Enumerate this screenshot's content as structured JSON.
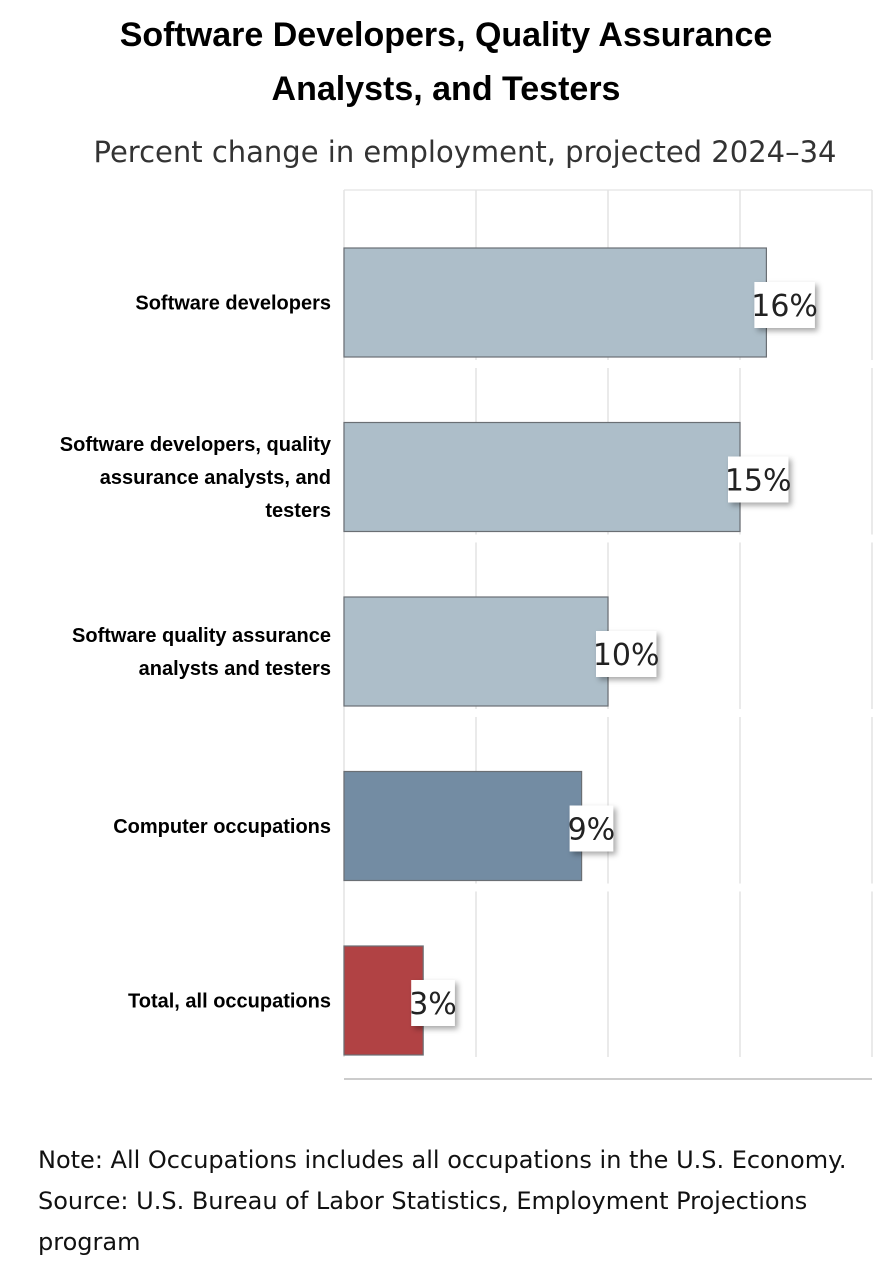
{
  "chart_data": {
    "type": "bar",
    "orientation": "horizontal",
    "title_lines": [
      "Software Developers, Quality Assurance",
      "Analysts, and Testers"
    ],
    "subtitle": "Percent change in employment, projected 2024–34",
    "categories": [
      "Software developers",
      "Software developers, quality assurance analysts, and testers",
      "Software quality assurance analysts and testers",
      "Computer occupations",
      "Total, all occupations"
    ],
    "category_label_lines": [
      [
        "Software developers"
      ],
      [
        "Software developers, quality",
        "assurance analysts, and",
        "testers"
      ],
      [
        "Software quality assurance",
        "analysts and testers"
      ],
      [
        "Computer occupations"
      ],
      [
        "Total, all occupations"
      ]
    ],
    "values": [
      16,
      15,
      10,
      9,
      3
    ],
    "data_labels": [
      "16%",
      "15%",
      "10%",
      "9%",
      "3%"
    ],
    "colors": [
      "#adbec9",
      "#adbec9",
      "#adbec9",
      "#738ca3",
      "#b14244"
    ],
    "xlim": [
      0,
      20
    ],
    "grid": true,
    "legend": "none"
  },
  "notes": {
    "note": "Note: All Occupations includes all occupations in the U.S. Economy.",
    "source": "Source: U.S. Bureau of Labor Statistics, Employment Projections program"
  }
}
